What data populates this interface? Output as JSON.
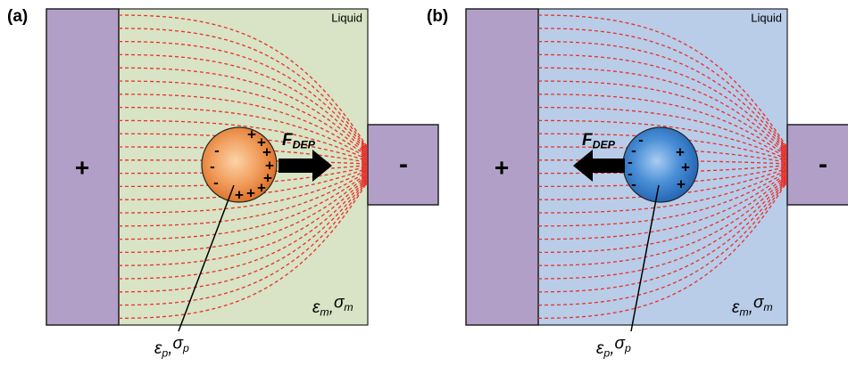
{
  "panels": [
    {
      "label": "(a)",
      "medium_label": "Liquid",
      "left_electrode": "+",
      "right_electrode": "-",
      "force": {
        "symbol": "F",
        "sub": "DEP"
      },
      "medium": [
        {
          "symbol": "ε",
          "sub": "m"
        },
        {
          "symbol": "σ",
          "sub": "m"
        }
      ],
      "particle": [
        {
          "symbol": "ε",
          "sub": "p"
        },
        {
          "symbol": "σ",
          "sub": "p"
        }
      ],
      "separator": ",",
      "charges": [
        "-",
        "-",
        "-",
        "+",
        "+",
        "+",
        "+",
        "+",
        "+",
        "+",
        "+"
      ]
    },
    {
      "label": "(b)",
      "medium_label": "Liquid",
      "left_electrode": "+",
      "right_electrode": "-",
      "force": {
        "symbol": "F",
        "sub": "DEP"
      },
      "medium": [
        {
          "symbol": "ε",
          "sub": "m"
        },
        {
          "symbol": "σ",
          "sub": "m"
        }
      ],
      "particle": [
        {
          "symbol": "ε",
          "sub": "p"
        },
        {
          "symbol": "σ",
          "sub": "p"
        }
      ],
      "separator": ",",
      "charges": [
        "-",
        "-",
        "-",
        "-",
        "-",
        "+",
        "+",
        "+"
      ]
    }
  ]
}
